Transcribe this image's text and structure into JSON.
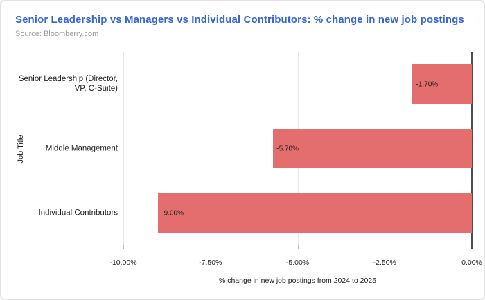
{
  "header": {
    "title": "Senior Leadership vs Managers vs Individual Contributors: % change in new job postings",
    "source": "Source: Bloomberry.com"
  },
  "chart_data": {
    "type": "bar",
    "orientation": "horizontal",
    "title": "Senior Leadership vs Managers vs Individual Contributors: % change in new job postings",
    "subtitle": "Source: Bloomberry.com",
    "categories": [
      "Senior Leadership (Director, VP, C-Suite)",
      "Middle Management",
      "Individual Contributors"
    ],
    "category_label_lines": [
      [
        "Senior Leadership (Director,",
        "VP, C-Suite)"
      ],
      [
        "Middle Management"
      ],
      [
        "Individual Contributors"
      ]
    ],
    "values": [
      -1.7,
      -5.7,
      -9.0
    ],
    "data_labels": [
      "-1.70%",
      "-5.70%",
      "-9.00%"
    ],
    "xlabel": "% change in new job postings from 2024 to 2025",
    "ylabel": "Job Title",
    "xlim": [
      -10,
      0
    ],
    "x_ticks": [
      -10,
      -7.5,
      -5,
      -2.5,
      0
    ],
    "x_tick_labels": [
      "-10.00%",
      "-7.50%",
      "-5.00%",
      "-2.50%",
      "0.00%"
    ],
    "grid": true,
    "legend_position": "none"
  },
  "colors": {
    "title": "#3566d2",
    "source_text": "#9a9a9a",
    "bar_fill": "#e46e6e",
    "gridline": "#e6e6e6",
    "zero_axis": "#4d4d4d",
    "text": "#212121",
    "card_border": "#e2e2e2"
  }
}
